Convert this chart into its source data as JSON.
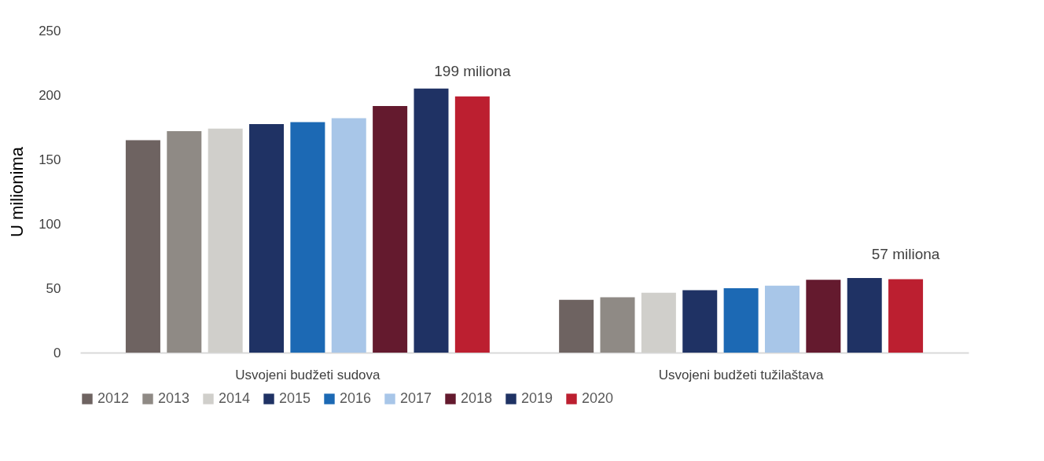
{
  "chart_data": {
    "type": "bar",
    "ylabel": "U milionima",
    "categories": [
      "Usvojeni budžeti sudova",
      "Usvojeni budžeti tužilaštava"
    ],
    "series": [
      {
        "name": "2012",
        "color": "#6e6361",
        "values": [
          165,
          41
        ]
      },
      {
        "name": "2013",
        "color": "#8f8a85",
        "values": [
          172,
          43
        ]
      },
      {
        "name": "2014",
        "color": "#d0cfcb",
        "values": [
          174,
          46.5
        ]
      },
      {
        "name": "2015",
        "color": "#1f3264",
        "values": [
          177.5,
          48.5
        ]
      },
      {
        "name": "2016",
        "color": "#1c69b4",
        "values": [
          179,
          50
        ]
      },
      {
        "name": "2017",
        "color": "#a8c6e8",
        "values": [
          182,
          52
        ]
      },
      {
        "name": "2018",
        "color": "#641a2e",
        "values": [
          191.5,
          56.5
        ]
      },
      {
        "name": "2019",
        "color": "#1f3264",
        "values": [
          205,
          58
        ]
      },
      {
        "name": "2020",
        "color": "#bc1f30",
        "values": [
          199,
          57
        ]
      }
    ],
    "ylim": [
      0,
      250
    ],
    "yticks": [
      0,
      50,
      100,
      150,
      200,
      250
    ],
    "grid": false,
    "legend": "bottom",
    "annotations": [
      "199 miliona",
      "57 miliona"
    ]
  }
}
